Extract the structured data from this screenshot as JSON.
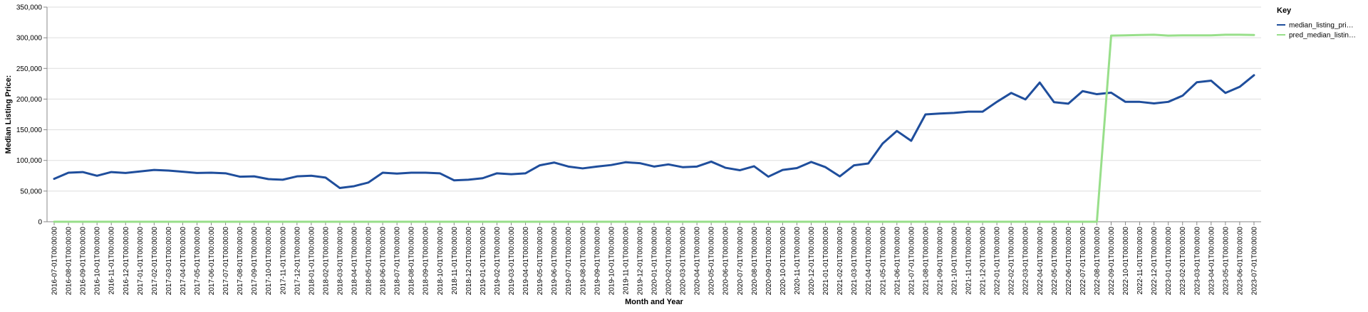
{
  "chart_data": {
    "type": "line",
    "xlabel": "Month and Year",
    "ylabel": "Median Listing Price:",
    "ylim": [
      0,
      350000
    ],
    "y_ticks": [
      0,
      50000,
      100000,
      150000,
      200000,
      250000,
      300000,
      350000
    ],
    "y_tick_labels": [
      "0",
      "50,000",
      "100,000",
      "150,000",
      "200,000",
      "250,000",
      "300,000",
      "350,000"
    ],
    "grid": true,
    "legend": {
      "title": "Key",
      "position": "right"
    },
    "x": [
      "2016-07-01T00:00:00",
      "2016-08-01T00:00:00",
      "2016-09-01T00:00:00",
      "2016-10-01T00:00:00",
      "2016-11-01T00:00:00",
      "2016-12-01T00:00:00",
      "2017-01-01T00:00:00",
      "2017-02-01T00:00:00",
      "2017-03-01T00:00:00",
      "2017-04-01T00:00:00",
      "2017-05-01T00:00:00",
      "2017-06-01T00:00:00",
      "2017-07-01T00:00:00",
      "2017-08-01T00:00:00",
      "2017-09-01T00:00:00",
      "2017-10-01T00:00:00",
      "2017-11-01T00:00:00",
      "2017-12-01T00:00:00",
      "2018-01-01T00:00:00",
      "2018-02-01T00:00:00",
      "2018-03-01T00:00:00",
      "2018-04-01T00:00:00",
      "2018-05-01T00:00:00",
      "2018-06-01T00:00:00",
      "2018-07-01T00:00:00",
      "2018-08-01T00:00:00",
      "2018-09-01T00:00:00",
      "2018-10-01T00:00:00",
      "2018-11-01T00:00:00",
      "2018-12-01T00:00:00",
      "2019-01-01T00:00:00",
      "2019-02-01T00:00:00",
      "2019-03-01T00:00:00",
      "2019-04-01T00:00:00",
      "2019-05-01T00:00:00",
      "2019-06-01T00:00:00",
      "2019-07-01T00:00:00",
      "2019-08-01T00:00:00",
      "2019-09-01T00:00:00",
      "2019-10-01T00:00:00",
      "2019-11-01T00:00:00",
      "2019-12-01T00:00:00",
      "2020-01-01T00:00:00",
      "2020-02-01T00:00:00",
      "2020-03-01T00:00:00",
      "2020-04-01T00:00:00",
      "2020-05-01T00:00:00",
      "2020-06-01T00:00:00",
      "2020-07-01T00:00:00",
      "2020-08-01T00:00:00",
      "2020-09-01T00:00:00",
      "2020-10-01T00:00:00",
      "2020-11-01T00:00:00",
      "2020-12-01T00:00:00",
      "2021-01-01T00:00:00",
      "2021-02-01T00:00:00",
      "2021-03-01T00:00:00",
      "2021-04-01T00:00:00",
      "2021-05-01T00:00:00",
      "2021-06-01T00:00:00",
      "2021-07-01T00:00:00",
      "2021-08-01T00:00:00",
      "2021-09-01T00:00:00",
      "2021-10-01T00:00:00",
      "2021-11-01T00:00:00",
      "2021-12-01T00:00:00",
      "2022-01-01T00:00:00",
      "2022-02-01T00:00:00",
      "2022-03-01T00:00:00",
      "2022-04-01T00:00:00",
      "2022-05-01T00:00:00",
      "2022-06-01T00:00:00",
      "2022-07-01T00:00:00",
      "2022-08-01T00:00:00",
      "2022-09-01T00:00:00",
      "2022-10-01T00:00:00",
      "2022-11-01T00:00:00",
      "2022-12-01T00:00:00",
      "2023-01-01T00:00:00",
      "2023-02-01T00:00:00",
      "2023-03-01T00:00:00",
      "2023-04-01T00:00:00",
      "2023-05-01T00:00:00",
      "2023-06-01T00:00:00",
      "2023-07-01T00:00:00"
    ],
    "series": [
      {
        "name": "median_listing_pri…",
        "color": "#1f4e9c",
        "values": [
          70000,
          80000,
          81000,
          75000,
          81000,
          79500,
          82000,
          84500,
          83500,
          81500,
          79500,
          80000,
          79000,
          73500,
          74000,
          69500,
          68500,
          74000,
          75000,
          72000,
          55000,
          58000,
          64000,
          80000,
          78500,
          80000,
          80000,
          79000,
          67500,
          68500,
          71000,
          79000,
          77500,
          79000,
          92000,
          96500,
          90000,
          87000,
          90000,
          92500,
          97000,
          95500,
          90000,
          93500,
          89000,
          90000,
          98000,
          88000,
          84000,
          90500,
          73500,
          84500,
          87500,
          97500,
          89000,
          74000,
          92000,
          95000,
          127500,
          148000,
          132000,
          175000,
          176500,
          177500,
          179500,
          179500,
          195500,
          210000,
          199500,
          227000,
          195000,
          192500,
          213000,
          208000,
          210500,
          195500,
          195500,
          193000,
          195500,
          205500,
          227500,
          230000,
          210000,
          220000,
          239000
        ]
      },
      {
        "name": "pred_median_listin…",
        "color": "#98df8a",
        "values": [
          0,
          0,
          0,
          0,
          0,
          0,
          0,
          0,
          0,
          0,
          0,
          0,
          0,
          0,
          0,
          0,
          0,
          0,
          0,
          0,
          0,
          0,
          0,
          0,
          0,
          0,
          0,
          0,
          0,
          0,
          0,
          0,
          0,
          0,
          0,
          0,
          0,
          0,
          0,
          0,
          0,
          0,
          0,
          0,
          0,
          0,
          0,
          0,
          0,
          0,
          0,
          0,
          0,
          0,
          0,
          0,
          0,
          0,
          0,
          0,
          0,
          0,
          0,
          0,
          0,
          0,
          0,
          0,
          0,
          0,
          0,
          0,
          0,
          0,
          303500,
          304000,
          304500,
          305000,
          303500,
          304000,
          304000,
          304000,
          305000,
          305000,
          304500
        ]
      }
    ]
  }
}
